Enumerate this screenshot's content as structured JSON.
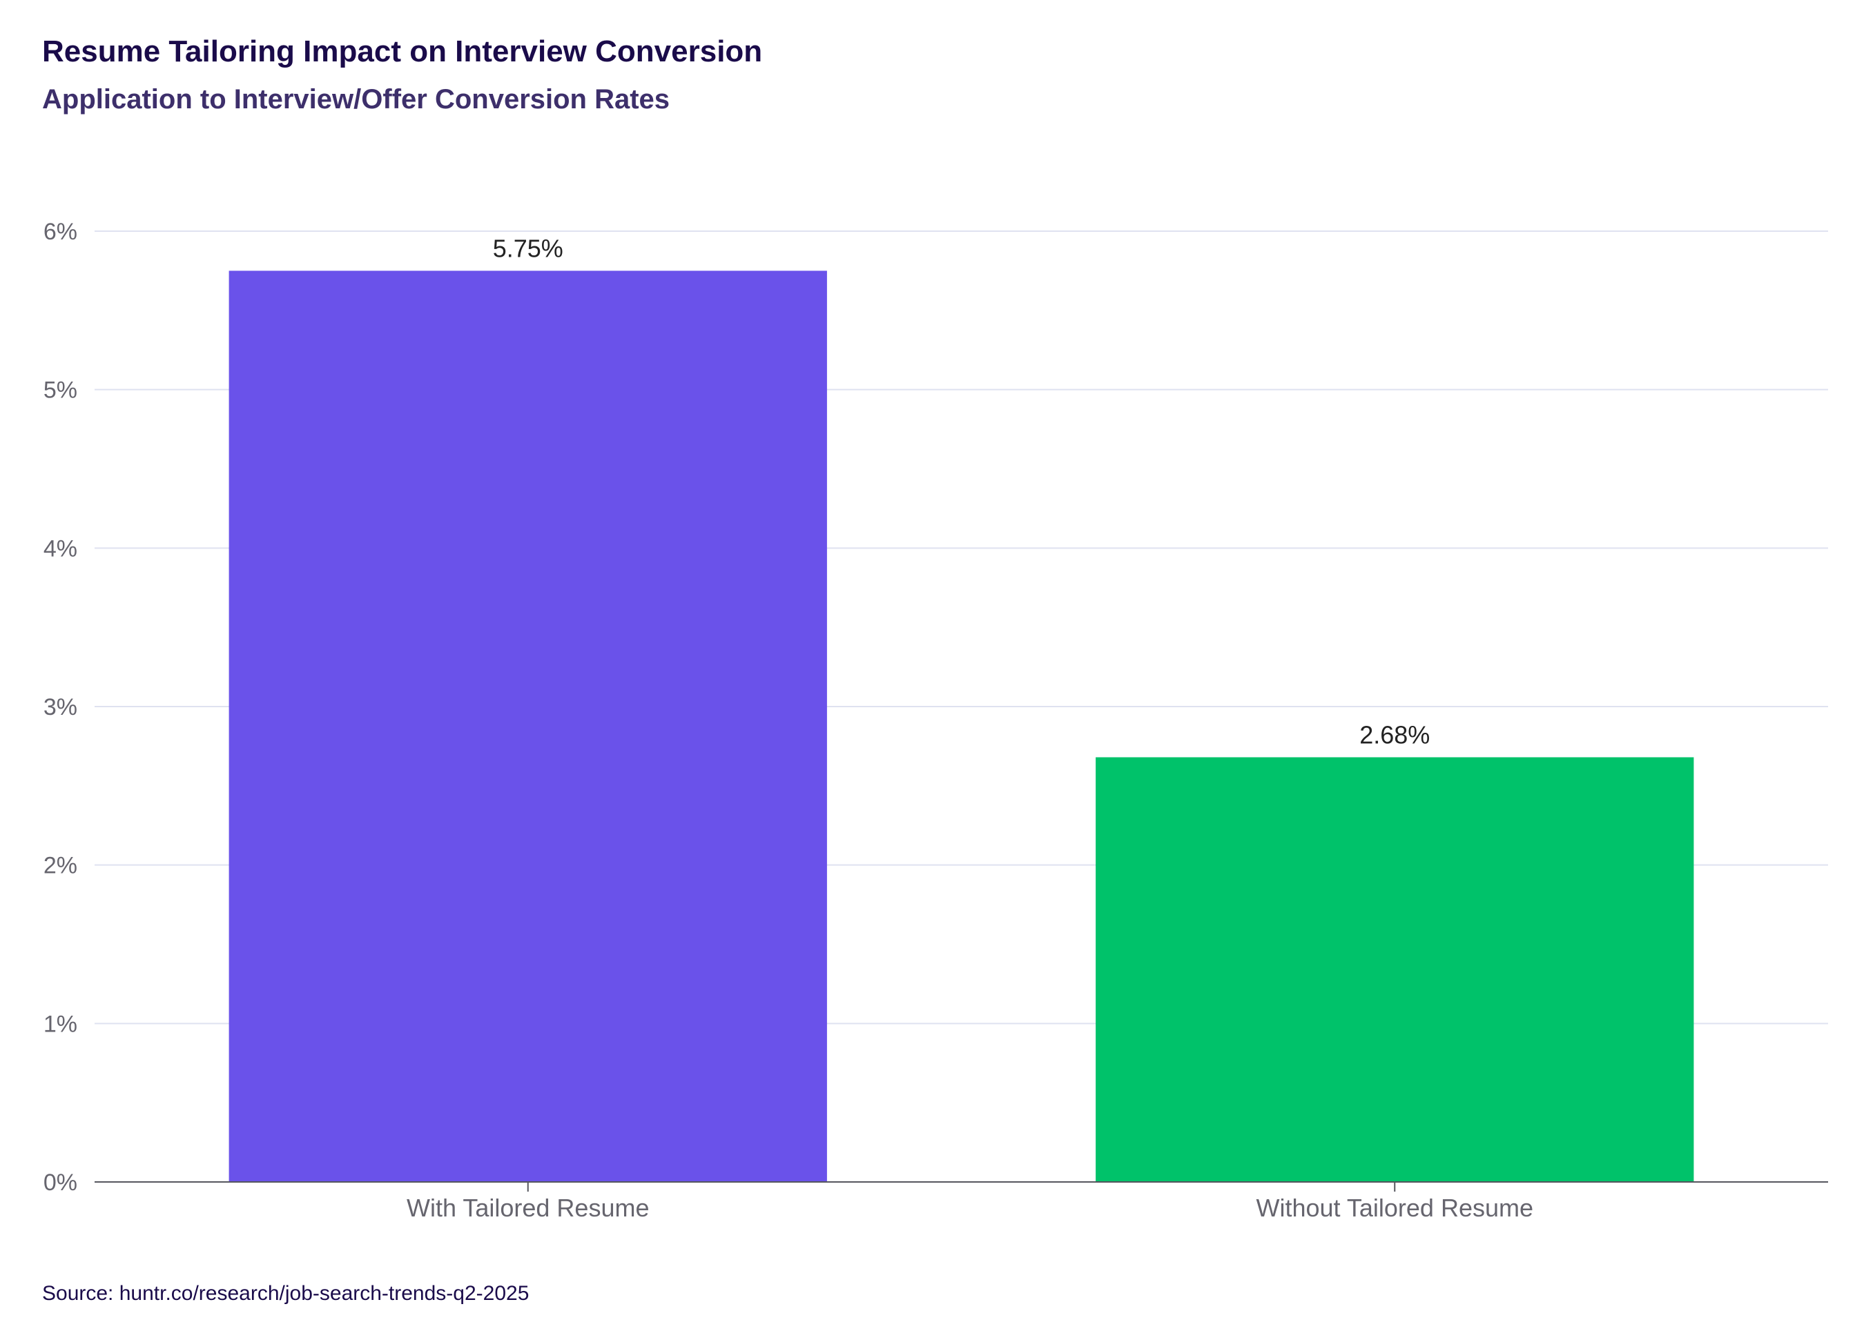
{
  "chart_data": {
    "type": "bar",
    "title": "Resume Tailoring Impact on Interview Conversion",
    "subtitle": "Application to Interview/Offer Conversion Rates",
    "categories": [
      "With Tailored Resume",
      "Without Tailored Resume"
    ],
    "values": [
      5.75,
      2.68
    ],
    "value_labels": [
      "5.75%",
      "2.68%"
    ],
    "bar_colors": [
      "#6a52ea",
      "#00c26a"
    ],
    "ylim": [
      0,
      6
    ],
    "yticks": [
      0,
      1,
      2,
      3,
      4,
      5,
      6
    ],
    "ytick_labels": [
      "0%",
      "1%",
      "2%",
      "3%",
      "4%",
      "5%",
      "6%"
    ],
    "xlabel": "",
    "ylabel": "",
    "grid": true,
    "gridline_color": "#dfe2f0",
    "source": "Source: huntr.co/research/job-search-trends-q2-2025"
  }
}
